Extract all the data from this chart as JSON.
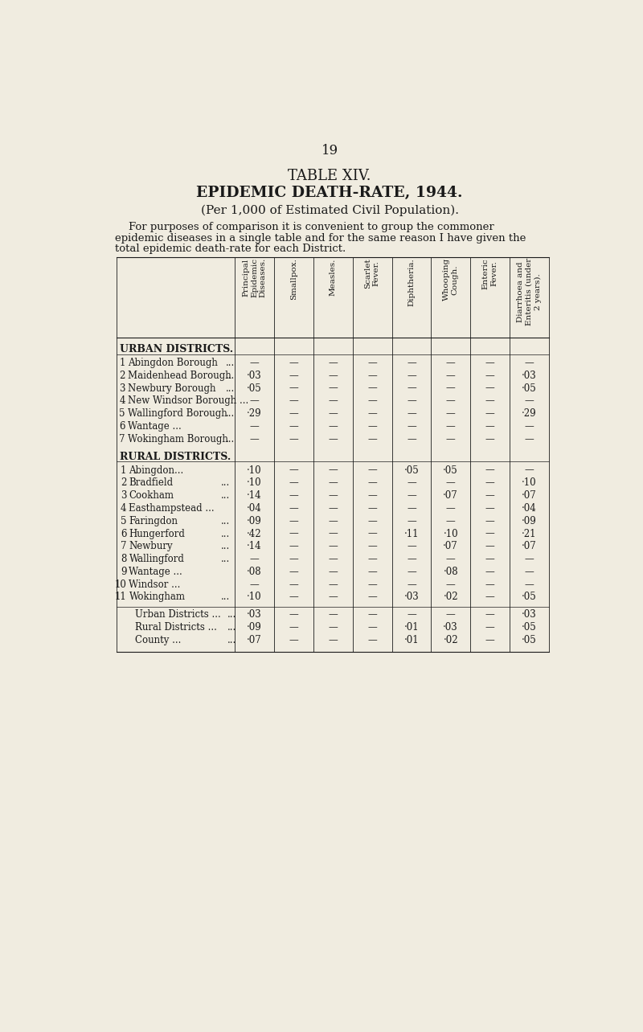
{
  "page_number": "19",
  "title1": "TABLE XIV.",
  "title2": "EPIDEMIC DEATH-RATE, 1944.",
  "title3": "(Per 1,000 of Estimated Civil Population).",
  "intro_line1": "    For purposes of comparison it is convenient to group the commoner",
  "intro_line2": "epidemic diseases in a single table and for the same reason I have given the",
  "intro_line3": "total epidemic death-rate for each District.",
  "col_headers": [
    [
      "Principal",
      "Epidemic",
      "Diseases."
    ],
    [
      "Smallpox."
    ],
    [
      "Measles."
    ],
    [
      "Scarlet",
      "Fever."
    ],
    [
      "Diphtheria."
    ],
    [
      "Whooping",
      "Cough."
    ],
    [
      "Enteric",
      "Fever."
    ],
    [
      "Diarrhoea and",
      "Enteritis (under",
      "2 years)."
    ]
  ],
  "section1_header": "URBAN DISTRICTS.",
  "urban_rows": [
    {
      "num": "1",
      "name": "Abingdon Borough",
      "dots": "...",
      "vals": [
        "—",
        "—",
        "—",
        "—",
        "—",
        "—",
        "—",
        "—"
      ]
    },
    {
      "num": "2",
      "name": "Maidenhead Borough",
      "dots": "...",
      "vals": [
        "·03",
        "—",
        "—",
        "—",
        "—",
        "—",
        "—",
        "·03"
      ]
    },
    {
      "num": "3",
      "name": "Newbury Borough",
      "dots": "...",
      "vals": [
        "·05",
        "—",
        "—",
        "—",
        "—",
        "—",
        "—",
        "·05"
      ]
    },
    {
      "num": "4",
      "name": "New Windsor Borough ...",
      "dots": "",
      "vals": [
        "—",
        "—",
        "—",
        "—",
        "—",
        "—",
        "—",
        "—"
      ]
    },
    {
      "num": "5",
      "name": "Wallingford Borough",
      "dots": "...",
      "vals": [
        "·29",
        "—",
        "—",
        "—",
        "—",
        "—",
        "—",
        "·29"
      ]
    },
    {
      "num": "6",
      "name": "Wantage ...",
      "dots": "...",
      "vals": [
        "—",
        "—",
        "—",
        "—",
        "—",
        "—",
        "—",
        "—"
      ]
    },
    {
      "num": "7",
      "name": "Wokingham Borough",
      "dots": "...",
      "vals": [
        "—",
        "—",
        "—",
        "—",
        "—",
        "—",
        "—",
        "—"
      ]
    }
  ],
  "section2_header": "RURAL DISTRICTS.",
  "rural_rows": [
    {
      "num": "1",
      "name": "Abingdon...",
      "dots": "...",
      "vals": [
        "·10",
        "—",
        "—",
        "—",
        "·05",
        "·05",
        "—",
        "—"
      ]
    },
    {
      "num": "2",
      "name": "Bradfield",
      "dots": "...",
      "vals": [
        "·10",
        "—",
        "—",
        "—",
        "—",
        "—",
        "—",
        "·10"
      ]
    },
    {
      "num": "3",
      "name": "Cookham",
      "dots": "...",
      "vals": [
        "·14",
        "—",
        "—",
        "—",
        "—",
        "·07",
        "—",
        "·07"
      ]
    },
    {
      "num": "4",
      "name": "Easthampstead ...",
      "dots": "...",
      "vals": [
        "·04",
        "—",
        "—",
        "—",
        "—",
        "—",
        "—",
        "·04"
      ]
    },
    {
      "num": "5",
      "name": "Faringdon",
      "dots": "...",
      "vals": [
        "·09",
        "—",
        "—",
        "—",
        "—",
        "—",
        "—",
        "·09"
      ]
    },
    {
      "num": "6",
      "name": "Hungerford",
      "dots": "...",
      "vals": [
        "·42",
        "—",
        "—",
        "—",
        "·11",
        "·10",
        "—",
        "·21"
      ]
    },
    {
      "num": "7",
      "name": "Newbury",
      "dots": "...",
      "vals": [
        "·14",
        "—",
        "—",
        "—",
        "—",
        "·07",
        "—",
        "·07"
      ]
    },
    {
      "num": "8",
      "name": "Wallingford",
      "dots": "...",
      "vals": [
        "—",
        "—",
        "—",
        "—",
        "—",
        "—",
        "—",
        "—"
      ]
    },
    {
      "num": "9",
      "name": "Wantage ...",
      "dots": "...",
      "vals": [
        "·08",
        "—",
        "—",
        "—",
        "—",
        "·08",
        "—",
        "—"
      ]
    },
    {
      "num": "10",
      "name": "Windsor ...",
      "dots": "...",
      "vals": [
        "—",
        "—",
        "—",
        "—",
        "—",
        "—",
        "—",
        "—"
      ]
    },
    {
      "num": "11",
      "name": "Wokingham",
      "dots": "...",
      "vals": [
        "·10",
        "—",
        "—",
        "—",
        "·03",
        "·02",
        "—",
        "·05"
      ]
    }
  ],
  "summary_rows": [
    {
      "name": "Urban Districts ...",
      "dots": "...",
      "vals": [
        "·03",
        "—",
        "—",
        "—",
        "—",
        "—",
        "—",
        "·03"
      ]
    },
    {
      "name": "Rural Districts ...",
      "dots": "...",
      "vals": [
        "·09",
        "—",
        "—",
        "—",
        "·01",
        "·03",
        "—",
        "·05"
      ]
    },
    {
      "name": "County ...",
      "dots": "...",
      "vals": [
        "·07",
        "—",
        "—",
        "—",
        "·01",
        "·02",
        "—",
        "·05"
      ]
    }
  ],
  "bg_color": "#f0ece0",
  "text_color": "#1a1a1a"
}
